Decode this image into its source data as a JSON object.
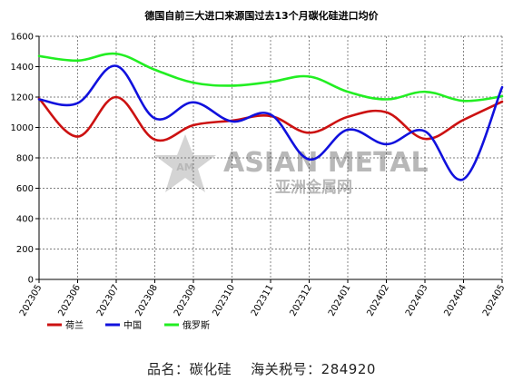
{
  "chart_data": {
    "type": "line",
    "title": "德国自前三大进口来源国过去13个月碳化硅进口均价",
    "categories": [
      "202305",
      "202306",
      "202307",
      "202308",
      "202309",
      "202310",
      "202311",
      "202312",
      "202401",
      "202402",
      "202403",
      "202404",
      "202405"
    ],
    "ylim": [
      0,
      1600
    ],
    "yticks": [
      0,
      200,
      400,
      600,
      800,
      1000,
      1200,
      1400,
      1600
    ],
    "grid": true,
    "legend_position": "bottom-left",
    "series": [
      {
        "name": "荷兰",
        "color": "#cc1111",
        "values": [
          1190,
          940,
          1200,
          920,
          1015,
          1045,
          1075,
          965,
          1070,
          1100,
          925,
          1050,
          1170
        ]
      },
      {
        "name": "中国",
        "color": "#1111dd",
        "values": [
          1185,
          1160,
          1405,
          1060,
          1165,
          1040,
          1085,
          790,
          985,
          890,
          975,
          660,
          1265
        ]
      },
      {
        "name": "俄罗斯",
        "color": "#22ee22",
        "values": [
          1470,
          1440,
          1485,
          1380,
          1295,
          1275,
          1300,
          1335,
          1235,
          1185,
          1235,
          1175,
          1205
        ]
      }
    ]
  },
  "watermark": {
    "brand": "ASIAN METAL",
    "brand_cn": "亚洲金属网",
    "logo_text": "AM"
  },
  "footer": {
    "product_label": "品名：",
    "product_value": "碳化硅",
    "hs_label": "海关税号：",
    "hs_value": "284920"
  }
}
